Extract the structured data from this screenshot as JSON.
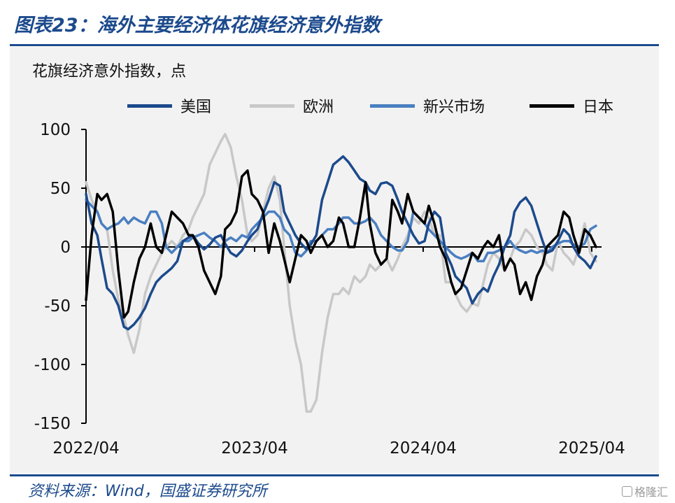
{
  "header": {
    "title": "图表23：海外主要经济体花旗经济意外指数"
  },
  "footer": {
    "source": "资料来源：Wind，国盛证券研究所",
    "watermark": "格隆汇"
  },
  "colors": {
    "title_blue": "#1c4a8c"
  },
  "chart_data": {
    "type": "line",
    "title": "",
    "ylabel": "花旗经济意外指数，点",
    "xlabel": "",
    "ylim": [
      -150,
      100
    ],
    "y_ticks": [
      100,
      50,
      0,
      -50,
      -100,
      -150
    ],
    "y_tick_labels": [
      "100",
      "50",
      "0",
      "-50",
      "-100",
      "-150"
    ],
    "x_ticks": [
      0,
      12,
      24,
      36
    ],
    "x_tick_labels": [
      "2022/04",
      "2023/04",
      "2024/04",
      "2025/04"
    ],
    "x_range": [
      0,
      36.7
    ],
    "x_unit": "months since 2022/04",
    "legend_position": "top",
    "series": [
      {
        "name": "美国",
        "color": "#1c4a8c",
        "width": 3.5,
        "x": [
          0,
          0.4,
          0.8,
          1.1,
          1.5,
          1.9,
          2.3,
          2.7,
          3.0,
          3.4,
          3.8,
          4.2,
          4.6,
          5.0,
          5.4,
          5.7,
          6.1,
          6.5,
          6.9,
          7.3,
          7.6,
          8.0,
          8.4,
          8.8,
          9.2,
          9.6,
          9.9,
          10.3,
          10.7,
          11.1,
          11.5,
          11.8,
          12.2,
          12.6,
          13.0,
          13.4,
          13.8,
          14.1,
          14.5,
          14.9,
          15.3,
          15.7,
          16.0,
          16.4,
          16.8,
          17.2,
          17.6,
          18.0,
          18.3,
          18.7,
          19.1,
          19.5,
          19.9,
          20.2,
          20.6,
          21.0,
          21.4,
          21.8,
          22.2,
          22.5,
          22.9,
          23.3,
          23.7,
          24.1,
          24.4,
          24.8,
          25.2,
          25.6,
          26.0,
          26.3,
          26.7,
          27.1,
          27.5,
          27.9,
          28.3,
          28.6,
          29.0,
          29.4,
          29.8,
          30.2,
          30.5,
          30.9,
          31.3,
          31.7,
          32.1,
          32.5,
          32.8,
          33.2,
          33.6,
          34.0,
          34.4,
          34.7,
          35.1,
          35.5,
          35.9,
          36.3
        ],
        "values": [
          45,
          20,
          10,
          -10,
          -35,
          -40,
          -50,
          -68,
          -70,
          -66,
          -60,
          -52,
          -40,
          -30,
          -25,
          -22,
          -18,
          -12,
          5,
          8,
          10,
          3,
          -2,
          2,
          8,
          10,
          3,
          -5,
          -8,
          -3,
          5,
          10,
          15,
          28,
          40,
          55,
          52,
          30,
          20,
          10,
          3,
          -2,
          2,
          10,
          40,
          55,
          70,
          74,
          77,
          72,
          65,
          58,
          55,
          48,
          45,
          54,
          55,
          52,
          40,
          30,
          20,
          10,
          3,
          5,
          20,
          30,
          25,
          -5,
          -15,
          -25,
          -30,
          -35,
          -48,
          -40,
          -35,
          -38,
          -25,
          -15,
          0,
          10,
          30,
          38,
          42,
          35,
          20,
          5,
          -5,
          -3,
          5,
          15,
          10,
          0,
          -8,
          -12,
          -18,
          -8
        ]
      },
      {
        "name": "欧洲",
        "color": "#c8c8c8",
        "width": 3.5,
        "x": [
          0,
          0.4,
          0.8,
          1.1,
          1.5,
          1.9,
          2.3,
          2.7,
          3.0,
          3.4,
          3.8,
          4.2,
          4.6,
          5.0,
          5.4,
          5.7,
          6.1,
          6.5,
          6.9,
          7.3,
          7.6,
          8.0,
          8.4,
          8.8,
          9.2,
          9.6,
          9.9,
          10.3,
          10.7,
          11.1,
          11.5,
          11.8,
          12.2,
          12.6,
          13.0,
          13.4,
          13.8,
          14.1,
          14.5,
          14.9,
          15.3,
          15.7,
          16.0,
          16.4,
          16.8,
          17.2,
          17.6,
          18.0,
          18.3,
          18.7,
          19.1,
          19.5,
          19.9,
          20.2,
          20.6,
          21.0,
          21.4,
          21.8,
          22.2,
          22.5,
          22.9,
          23.3,
          23.7,
          24.1,
          24.4,
          24.8,
          25.2,
          25.6,
          26.0,
          26.3,
          26.7,
          27.1,
          27.5,
          27.9,
          28.3,
          28.6,
          29.0,
          29.4,
          29.8,
          30.2,
          30.5,
          30.9,
          31.3,
          31.7,
          32.1,
          32.5,
          32.8,
          33.2,
          33.6,
          34.0,
          34.4,
          34.7,
          35.1,
          35.5,
          35.9,
          36.3
        ],
        "values": [
          55,
          40,
          30,
          20,
          15,
          -20,
          -45,
          -60,
          -75,
          -90,
          -70,
          -40,
          -25,
          -15,
          -5,
          0,
          5,
          0,
          10,
          15,
          25,
          35,
          45,
          70,
          80,
          90,
          96,
          85,
          60,
          40,
          10,
          5,
          10,
          30,
          50,
          60,
          40,
          0,
          -50,
          -80,
          -100,
          -140,
          -140,
          -130,
          -90,
          -60,
          -40,
          -40,
          -35,
          -40,
          -25,
          -30,
          -25,
          -15,
          -20,
          -15,
          -10,
          -20,
          -10,
          0,
          10,
          25,
          20,
          30,
          25,
          10,
          10,
          -30,
          -30,
          -40,
          -50,
          -55,
          -48,
          -50,
          -30,
          -15,
          -5,
          -10,
          -20,
          -10,
          0,
          5,
          15,
          10,
          0,
          -5,
          -15,
          -20,
          5,
          -5,
          -10,
          -15,
          0,
          20,
          -5,
          -12
        ]
      },
      {
        "name": "新兴市场",
        "color": "#4a7fc1",
        "width": 3.5,
        "x": [
          0,
          0.4,
          0.8,
          1.1,
          1.5,
          1.9,
          2.3,
          2.7,
          3.0,
          3.4,
          3.8,
          4.2,
          4.6,
          5.0,
          5.4,
          5.7,
          6.1,
          6.5,
          6.9,
          7.3,
          7.6,
          8.0,
          8.4,
          8.8,
          9.2,
          9.6,
          9.9,
          10.3,
          10.7,
          11.1,
          11.5,
          11.8,
          12.2,
          12.6,
          13.0,
          13.4,
          13.8,
          14.1,
          14.5,
          14.9,
          15.3,
          15.7,
          16.0,
          16.4,
          16.8,
          17.2,
          17.6,
          18.0,
          18.3,
          18.7,
          19.1,
          19.5,
          19.9,
          20.2,
          20.6,
          21.0,
          21.4,
          21.8,
          22.2,
          22.5,
          22.9,
          23.3,
          23.7,
          24.1,
          24.4,
          24.8,
          25.2,
          25.6,
          26.0,
          26.3,
          26.7,
          27.1,
          27.5,
          27.9,
          28.3,
          28.6,
          29.0,
          29.4,
          29.8,
          30.2,
          30.5,
          30.9,
          31.3,
          31.7,
          32.1,
          32.5,
          32.8,
          33.2,
          33.6,
          34.0,
          34.4,
          34.7,
          35.1,
          35.5,
          35.9,
          36.3
        ],
        "values": [
          40,
          35,
          30,
          20,
          15,
          18,
          20,
          25,
          20,
          25,
          22,
          20,
          30,
          30,
          20,
          0,
          -5,
          0,
          5,
          5,
          8,
          10,
          12,
          8,
          5,
          0,
          5,
          8,
          5,
          10,
          8,
          15,
          20,
          25,
          30,
          30,
          25,
          15,
          10,
          -5,
          -8,
          -3,
          5,
          5,
          10,
          15,
          15,
          20,
          25,
          25,
          20,
          20,
          22,
          25,
          20,
          10,
          5,
          0,
          -3,
          -3,
          5,
          30,
          25,
          20,
          15,
          10,
          5,
          0,
          -5,
          -8,
          -10,
          -8,
          -5,
          -12,
          -12,
          -5,
          -5,
          -3,
          0,
          5,
          0,
          -3,
          -5,
          -3,
          -5,
          -3,
          -5,
          0,
          3,
          5,
          5,
          2,
          0,
          3,
          15,
          18
        ]
      },
      {
        "name": "日本",
        "color": "#000000",
        "width": 3.5,
        "x": [
          0,
          0.4,
          0.8,
          1.1,
          1.5,
          1.9,
          2.3,
          2.7,
          3.0,
          3.4,
          3.8,
          4.2,
          4.6,
          5.0,
          5.4,
          5.7,
          6.1,
          6.5,
          6.9,
          7.3,
          7.6,
          8.0,
          8.4,
          8.8,
          9.2,
          9.6,
          9.9,
          10.3,
          10.7,
          11.1,
          11.5,
          11.8,
          12.2,
          12.6,
          13.0,
          13.4,
          13.8,
          14.1,
          14.5,
          14.9,
          15.3,
          15.7,
          16.0,
          16.4,
          16.8,
          17.2,
          17.6,
          18.0,
          18.3,
          18.7,
          19.1,
          19.5,
          19.9,
          20.2,
          20.6,
          21.0,
          21.4,
          21.8,
          22.2,
          22.5,
          22.9,
          23.3,
          23.7,
          24.1,
          24.4,
          24.8,
          25.2,
          25.6,
          26.0,
          26.3,
          26.7,
          27.1,
          27.5,
          27.9,
          28.3,
          28.6,
          29.0,
          29.4,
          29.8,
          30.2,
          30.5,
          30.9,
          31.3,
          31.7,
          32.1,
          32.5,
          32.8,
          33.2,
          33.6,
          34.0,
          34.4,
          34.7,
          35.1,
          35.5,
          35.9,
          36.3
        ],
        "values": [
          -45,
          10,
          45,
          40,
          45,
          30,
          -20,
          -60,
          -55,
          -30,
          -10,
          0,
          20,
          0,
          -5,
          10,
          30,
          25,
          20,
          10,
          10,
          0,
          -20,
          -30,
          -40,
          -25,
          15,
          20,
          30,
          60,
          65,
          45,
          40,
          30,
          -5,
          20,
          5,
          -10,
          -30,
          -10,
          10,
          5,
          -5,
          5,
          10,
          0,
          5,
          25,
          20,
          0,
          0,
          25,
          55,
          20,
          -5,
          -15,
          -10,
          40,
          30,
          20,
          45,
          30,
          25,
          20,
          35,
          20,
          0,
          -10,
          -30,
          -40,
          -35,
          -20,
          -5,
          -10,
          0,
          5,
          0,
          10,
          -20,
          -10,
          -15,
          -40,
          -30,
          -45,
          -25,
          -15,
          0,
          5,
          10,
          30,
          25,
          10,
          -5,
          15,
          10,
          0
        ]
      }
    ]
  }
}
